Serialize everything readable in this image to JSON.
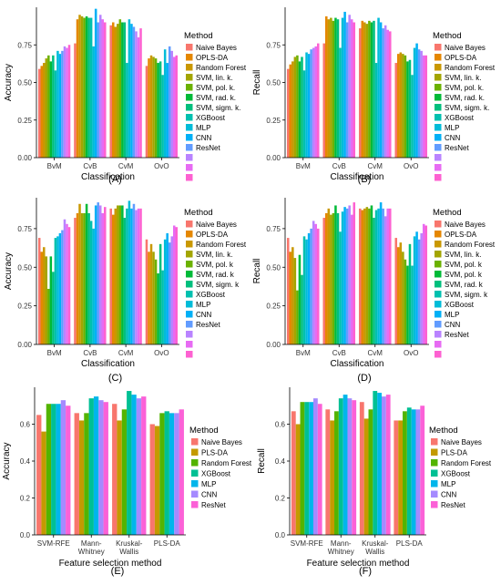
{
  "panels": [
    {
      "panel_label": "(A)",
      "legend_title": "Method",
      "chart_data": {
        "type": "bar",
        "xlabel": "Classification",
        "ylabel": "Accuracy",
        "categories": [
          "BvM",
          "CvB",
          "CvM",
          "OvO"
        ],
        "ylim": [
          0,
          1.0
        ],
        "yticks": [
          0.0,
          0.25,
          0.5,
          0.75
        ],
        "ytick_labels": [
          "0.00",
          "0.25",
          "0.50",
          "0.75"
        ],
        "grid": false,
        "legend_position": "right",
        "series": [
          {
            "name": "Naive Bayes",
            "color": "#F8766D",
            "values": [
              0.59,
              0.76,
              0.88,
              0.61
            ]
          },
          {
            "name": "OPLS-DA",
            "color": "#E58700",
            "values": [
              0.61,
              0.92,
              0.9,
              0.66
            ]
          },
          {
            "name": "Random Forest",
            "color": "#C99800",
            "values": [
              0.63,
              0.95,
              0.87,
              0.68
            ]
          },
          {
            "name": "SVM, lin. k.",
            "color": "#A3A500",
            "values": [
              0.66,
              0.94,
              0.89,
              0.67
            ]
          },
          {
            "name": "SVM, pol. k.",
            "color": "#6BB100",
            "values": [
              0.68,
              0.93,
              0.92,
              0.66
            ]
          },
          {
            "name": "SVM, rad. k.",
            "color": "#00BA38",
            "values": [
              0.64,
              0.94,
              0.9,
              0.63
            ]
          },
          {
            "name": "SVM, sigm. k.",
            "color": "#00BF7D",
            "values": [
              0.68,
              0.93,
              0.9,
              0.64
            ]
          },
          {
            "name": "XGBoost",
            "color": "#00C0AF",
            "values": [
              0.58,
              0.93,
              0.63,
              0.55
            ]
          },
          {
            "name": "MLP",
            "color": "#00BCD8",
            "values": [
              0.71,
              0.74,
              0.92,
              0.72
            ]
          },
          {
            "name": "CNN",
            "color": "#00B0F6",
            "values": [
              0.69,
              0.99,
              0.89,
              0.63
            ]
          },
          {
            "name": "ResNet",
            "color": "#619CFF",
            "values": [
              0.71,
              0.9,
              0.87,
              0.74
            ]
          },
          {
            "name": "",
            "color": "#B983FF",
            "values": [
              0.74,
              0.95,
              0.84,
              0.71
            ]
          },
          {
            "name": "",
            "color": "#E76BF3",
            "values": [
              0.73,
              0.92,
              0.8,
              0.67
            ]
          },
          {
            "name": "",
            "color": "#FD61D1",
            "values": [
              0.75,
              0.9,
              0.86,
              0.68
            ]
          }
        ]
      }
    },
    {
      "panel_label": "(B)",
      "legend_title": "Method",
      "chart_data": {
        "type": "bar",
        "xlabel": "Classification",
        "ylabel": "Recall",
        "categories": [
          "BvM",
          "CvB",
          "CvM",
          "OvO"
        ],
        "ylim": [
          0,
          1.0
        ],
        "yticks": [
          0.0,
          0.25,
          0.5,
          0.75
        ],
        "ytick_labels": [
          "0.00",
          "0.25",
          "0.50",
          "0.75"
        ],
        "grid": false,
        "legend_position": "right",
        "series": [
          {
            "name": "Naive Bayes",
            "color": "#F8766D",
            "values": [
              0.59,
              0.76,
              0.86,
              0.63
            ]
          },
          {
            "name": "OPLS-DA",
            "color": "#E58700",
            "values": [
              0.62,
              0.94,
              0.91,
              0.69
            ]
          },
          {
            "name": "Random Forest",
            "color": "#C99800",
            "values": [
              0.64,
              0.92,
              0.9,
              0.7
            ]
          },
          {
            "name": "SVM, lin. k.",
            "color": "#A3A500",
            "values": [
              0.67,
              0.93,
              0.89,
              0.69
            ]
          },
          {
            "name": "SVM, pol. k.",
            "color": "#6BB100",
            "values": [
              0.68,
              0.91,
              0.91,
              0.68
            ]
          },
          {
            "name": "SVM, rad. k.",
            "color": "#00BA38",
            "values": [
              0.64,
              0.93,
              0.9,
              0.64
            ]
          },
          {
            "name": "SVM, sigm. k.",
            "color": "#00BF7D",
            "values": [
              0.67,
              0.92,
              0.91,
              0.65
            ]
          },
          {
            "name": "XGBoost",
            "color": "#00C0AF",
            "values": [
              0.58,
              0.73,
              0.63,
              0.55
            ]
          },
          {
            "name": "MLP",
            "color": "#00BCD8",
            "values": [
              0.7,
              0.93,
              0.93,
              0.73
            ]
          },
          {
            "name": "CNN",
            "color": "#00B0F6",
            "values": [
              0.69,
              0.97,
              0.9,
              0.76
            ]
          },
          {
            "name": "ResNet",
            "color": "#619CFF",
            "values": [
              0.72,
              0.9,
              0.86,
              0.72
            ]
          },
          {
            "name": "",
            "color": "#B983FF",
            "values": [
              0.73,
              0.95,
              0.88,
              0.71
            ]
          },
          {
            "name": "",
            "color": "#E76BF3",
            "values": [
              0.74,
              0.92,
              0.85,
              0.68
            ]
          },
          {
            "name": "",
            "color": "#FD61D1",
            "values": [
              0.76,
              0.9,
              0.84,
              0.68
            ]
          }
        ]
      }
    },
    {
      "panel_label": "(C)",
      "legend_title": "Method",
      "chart_data": {
        "type": "bar",
        "xlabel": "Classification",
        "ylabel": "Accuracy",
        "categories": [
          "BvM",
          "CvB",
          "CvM",
          "OvO"
        ],
        "ylim": [
          0,
          0.95
        ],
        "yticks": [
          0.0,
          0.25,
          0.5,
          0.75
        ],
        "ytick_labels": [
          "0.00",
          "0.25",
          "0.50",
          "0.75"
        ],
        "grid": false,
        "legend_position": "right",
        "series": [
          {
            "name": "Naive Bayes",
            "color": "#F8766D",
            "values": [
              0.69,
              0.82,
              0.88,
              0.68
            ]
          },
          {
            "name": "OPLS-DA",
            "color": "#E58700",
            "values": [
              0.6,
              0.85,
              0.84,
              0.6
            ]
          },
          {
            "name": "Random Forest",
            "color": "#C99800",
            "values": [
              0.63,
              0.91,
              0.88,
              0.65
            ]
          },
          {
            "name": "SVM, lin. k.",
            "color": "#A3A500",
            "values": [
              0.57,
              0.85,
              0.9,
              0.6
            ]
          },
          {
            "name": "SVM, pol. k",
            "color": "#6BB100",
            "values": [
              0.36,
              0.85,
              0.9,
              0.55
            ]
          },
          {
            "name": "SVM, rad. k",
            "color": "#00BA38",
            "values": [
              0.57,
              0.91,
              0.9,
              0.46
            ]
          },
          {
            "name": "SVM, sigm. k",
            "color": "#00BF7D",
            "values": [
              0.47,
              0.85,
              0.82,
              0.65
            ]
          },
          {
            "name": "XGBoost",
            "color": "#00C0AF",
            "values": [
              0.69,
              0.8,
              0.88,
              0.48
            ]
          },
          {
            "name": "MLP",
            "color": "#00BCD8",
            "values": [
              0.7,
              0.75,
              0.93,
              0.68
            ]
          },
          {
            "name": "CNN",
            "color": "#00B0F6",
            "values": [
              0.72,
              0.9,
              0.88,
              0.72
            ]
          },
          {
            "name": "ResNet",
            "color": "#619CFF",
            "values": [
              0.74,
              0.92,
              0.91,
              0.66
            ]
          },
          {
            "name": "",
            "color": "#B983FF",
            "values": [
              0.81,
              0.9,
              0.87,
              0.7
            ]
          },
          {
            "name": "",
            "color": "#E76BF3",
            "values": [
              0.78,
              0.85,
              0.88,
              0.77
            ]
          },
          {
            "name": "",
            "color": "#FD61D1",
            "values": [
              0.76,
              0.89,
              0.88,
              0.76
            ]
          }
        ]
      }
    },
    {
      "panel_label": "(D)",
      "legend_title": "Method",
      "chart_data": {
        "type": "bar",
        "xlabel": "Classification",
        "ylabel": "Recall",
        "categories": [
          "BvM",
          "CvB",
          "CvM",
          "OvO"
        ],
        "ylim": [
          0,
          0.95
        ],
        "yticks": [
          0.0,
          0.25,
          0.5,
          0.75
        ],
        "ytick_labels": [
          "0.00",
          "0.25",
          "0.50",
          "0.75"
        ],
        "grid": false,
        "legend_position": "right",
        "series": [
          {
            "name": "Naive Bayes",
            "color": "#F8766D",
            "values": [
              0.69,
              0.82,
              0.88,
              0.69
            ]
          },
          {
            "name": "OPLS-DA",
            "color": "#E58700",
            "values": [
              0.6,
              0.85,
              0.87,
              0.63
            ]
          },
          {
            "name": "Random Forest",
            "color": "#C99800",
            "values": [
              0.63,
              0.88,
              0.88,
              0.66
            ]
          },
          {
            "name": "SVM, lin. k.",
            "color": "#A3A500",
            "values": [
              0.56,
              0.84,
              0.89,
              0.6
            ]
          },
          {
            "name": "SVM, pol. k",
            "color": "#6BB100",
            "values": [
              0.35,
              0.85,
              0.88,
              0.55
            ]
          },
          {
            "name": "SVM, pol. k",
            "color": "#00BA38",
            "values": [
              0.58,
              0.9,
              0.9,
              0.51
            ]
          },
          {
            "name": "SVM, rad. k",
            "color": "#00BF7D",
            "values": [
              0.45,
              0.85,
              0.82,
              0.65
            ]
          },
          {
            "name": "SVM, sigm. k",
            "color": "#00C0AF",
            "values": [
              0.7,
              0.73,
              0.87,
              0.51
            ]
          },
          {
            "name": "XGBoost",
            "color": "#00BCD8",
            "values": [
              0.68,
              0.86,
              0.88,
              0.7
            ]
          },
          {
            "name": "MLP",
            "color": "#00B0F6",
            "values": [
              0.72,
              0.89,
              0.92,
              0.73
            ]
          },
          {
            "name": "CNN",
            "color": "#619CFF",
            "values": [
              0.75,
              0.88,
              0.88,
              0.68
            ]
          },
          {
            "name": "ResNet",
            "color": "#B983FF",
            "values": [
              0.8,
              0.9,
              0.83,
              0.72
            ]
          },
          {
            "name": "",
            "color": "#E76BF3",
            "values": [
              0.78,
              0.84,
              0.88,
              0.78
            ]
          },
          {
            "name": "",
            "color": "#FD61D1",
            "values": [
              0.75,
              0.92,
              0.88,
              0.77
            ]
          }
        ]
      }
    },
    {
      "panel_label": "(E)",
      "legend_title": "Method",
      "chart_data": {
        "type": "bar",
        "xlabel": "Feature selection method",
        "ylabel": "Accuracy",
        "categories": [
          "SVM-RFE",
          "Mann-\nWhitney",
          "Kruskal-\nWallis",
          "PLS-DA"
        ],
        "ylim": [
          0,
          0.8
        ],
        "yticks": [
          0.0,
          0.2,
          0.4,
          0.6
        ],
        "ytick_labels": [
          "0.0",
          "0.2",
          "0.4",
          "0.6"
        ],
        "grid": false,
        "legend_position": "right",
        "series": [
          {
            "name": "Naive Bayes",
            "color": "#F8766D",
            "values": [
              0.65,
              0.66,
              0.71,
              0.6
            ]
          },
          {
            "name": "PLS-DA",
            "color": "#C49A00",
            "values": [
              0.56,
              0.62,
              0.62,
              0.59
            ]
          },
          {
            "name": "Random Forest",
            "color": "#53B400",
            "values": [
              0.71,
              0.66,
              0.68,
              0.66
            ]
          },
          {
            "name": "XGBoost",
            "color": "#00C094",
            "values": [
              0.71,
              0.74,
              0.78,
              0.67
            ]
          },
          {
            "name": "MLP",
            "color": "#00B6EB",
            "values": [
              0.71,
              0.75,
              0.76,
              0.66
            ]
          },
          {
            "name": "CNN",
            "color": "#A58AFF",
            "values": [
              0.73,
              0.73,
              0.74,
              0.66
            ]
          },
          {
            "name": "ResNet",
            "color": "#FB61D7",
            "values": [
              0.7,
              0.72,
              0.75,
              0.68
            ]
          }
        ]
      }
    },
    {
      "panel_label": "(F)",
      "legend_title": "Method",
      "chart_data": {
        "type": "bar",
        "xlabel": "Feature selection method",
        "ylabel": "Recall",
        "categories": [
          "SVM-RFE",
          "Mann-\nWhitney",
          "Kruskal-\nWallis",
          "PLS-DA"
        ],
        "ylim": [
          0,
          0.8
        ],
        "yticks": [
          0.0,
          0.2,
          0.4,
          0.6
        ],
        "ytick_labels": [
          "0.0",
          "0.2",
          "0.4",
          "0.6"
        ],
        "grid": false,
        "legend_position": "right",
        "series": [
          {
            "name": "Naive Bayes",
            "color": "#F8766D",
            "values": [
              0.67,
              0.68,
              0.72,
              0.62
            ]
          },
          {
            "name": "PLS-DA",
            "color": "#C49A00",
            "values": [
              0.6,
              0.62,
              0.63,
              0.62
            ]
          },
          {
            "name": "Random Forest",
            "color": "#53B400",
            "values": [
              0.72,
              0.67,
              0.68,
              0.67
            ]
          },
          {
            "name": "XGBoost",
            "color": "#00C094",
            "values": [
              0.72,
              0.74,
              0.78,
              0.69
            ]
          },
          {
            "name": "MLP",
            "color": "#00B6EB",
            "values": [
              0.72,
              0.76,
              0.77,
              0.68
            ]
          },
          {
            "name": "CNN",
            "color": "#A58AFF",
            "values": [
              0.74,
              0.74,
              0.75,
              0.68
            ]
          },
          {
            "name": "ResNet",
            "color": "#FB61D7",
            "values": [
              0.71,
              0.73,
              0.76,
              0.7
            ]
          }
        ]
      }
    }
  ]
}
